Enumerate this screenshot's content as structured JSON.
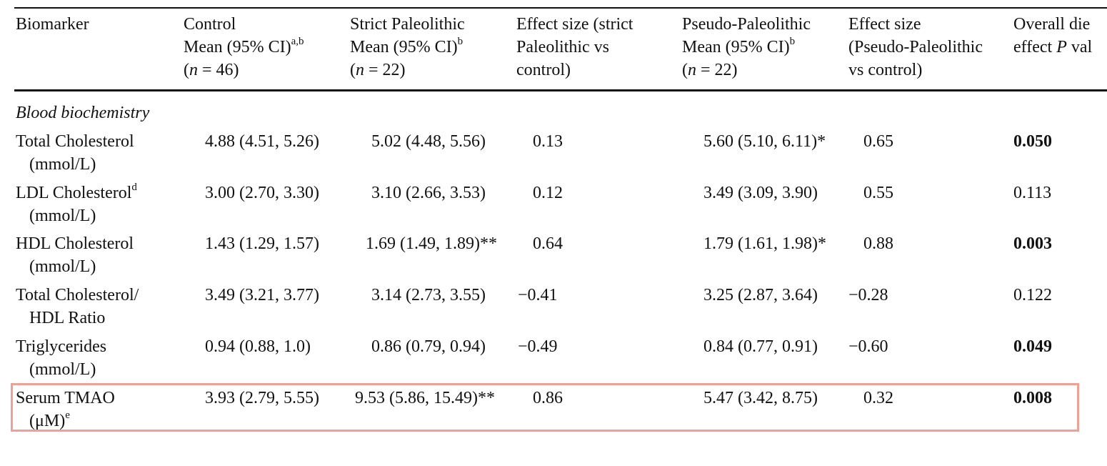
{
  "header": {
    "biomarker": "Biomarker",
    "control": {
      "l1": "Control",
      "l2": "Mean (95% CI)",
      "l2_sup": "a,b",
      "l3_pre": "(",
      "l3_n": "n",
      "l3_post": " = 46)"
    },
    "strict": {
      "l1": "Strict Paleolithic",
      "l2": "Mean (95% CI)",
      "l2_sup": "b",
      "l3_pre": "(",
      "l3_n": "n",
      "l3_post": " = 22)"
    },
    "effect_strict": {
      "l1": "Effect size (strict",
      "l2": "Paleolithic vs",
      "l3": "control)"
    },
    "pseudo": {
      "l1": "Pseudo-Paleolithic",
      "l2": "Mean (95% CI)",
      "l2_sup": "b",
      "l3_pre": "(",
      "l3_n": "n",
      "l3_post": " = 22)"
    },
    "effect_pseudo": {
      "l1": "Effect size",
      "l2": "(Pseudo-Paleolithic",
      "l3": "vs control)"
    },
    "overall": {
      "l1": "Overall die",
      "l2_pre": "effect ",
      "l2_p": "P",
      "l2_post": " val"
    }
  },
  "section_title": "Blood biochemistry",
  "rows": [
    {
      "name1": "Total Cholesterol",
      "name1_sup": "",
      "name2": "(mmol/L)",
      "name2_sup": "",
      "control": "4.88 (4.51, 5.26)",
      "strict": "5.02 (4.48, 5.56)",
      "effect_strict": "0.13",
      "pseudo": "5.60 (5.10, 6.11)*",
      "effect_pseudo": "0.65",
      "p": "0.050",
      "p_bold": true
    },
    {
      "name1": "LDL Cholesterol",
      "name1_sup": "d",
      "name2": "(mmol/L)",
      "name2_sup": "",
      "control": "3.00 (2.70, 3.30)",
      "strict": "3.10 (2.66, 3.53)",
      "effect_strict": "0.12",
      "pseudo": "3.49 (3.09, 3.90)",
      "effect_pseudo": "0.55",
      "p": "0.113",
      "p_bold": false
    },
    {
      "name1": "HDL Cholesterol",
      "name1_sup": "",
      "name2": "(mmol/L)",
      "name2_sup": "",
      "control": "1.43 (1.29, 1.57)",
      "strict": "1.69 (1.49, 1.89)**",
      "effect_strict": "0.64",
      "pseudo": "1.79 (1.61, 1.98)*",
      "effect_pseudo": "0.88",
      "p": "0.003",
      "p_bold": true
    },
    {
      "name1": "Total Cholesterol/",
      "name1_sup": "",
      "name2": "HDL Ratio",
      "name2_sup": "",
      "control": "3.49 (3.21, 3.77)",
      "strict": "3.14 (2.73, 3.55)",
      "effect_strict": "−0.41",
      "pseudo": "3.25 (2.87, 3.64)",
      "effect_pseudo": "−0.28",
      "p": "0.122",
      "p_bold": false
    },
    {
      "name1": "Triglycerides",
      "name1_sup": "",
      "name2": "(mmol/L)",
      "name2_sup": "",
      "control": "0.94 (0.88, 1.0)",
      "strict": "0.86 (0.79, 0.94)",
      "effect_strict": "−0.49",
      "pseudo": "0.84 (0.77, 0.91)",
      "effect_pseudo": "−0.60",
      "p": "0.049",
      "p_bold": true
    },
    {
      "name1": "Serum TMAO",
      "name1_sup": "",
      "name2": "(μM)",
      "name2_sup": "e",
      "control": "3.93 (2.79, 5.55)",
      "strict": "9.53 (5.86, 15.49)**",
      "effect_strict": "0.86",
      "pseudo": "5.47 (3.42, 8.75)",
      "effect_pseudo": "0.32",
      "p": "0.008",
      "p_bold": true
    }
  ],
  "highlight_color": "#f0a196"
}
